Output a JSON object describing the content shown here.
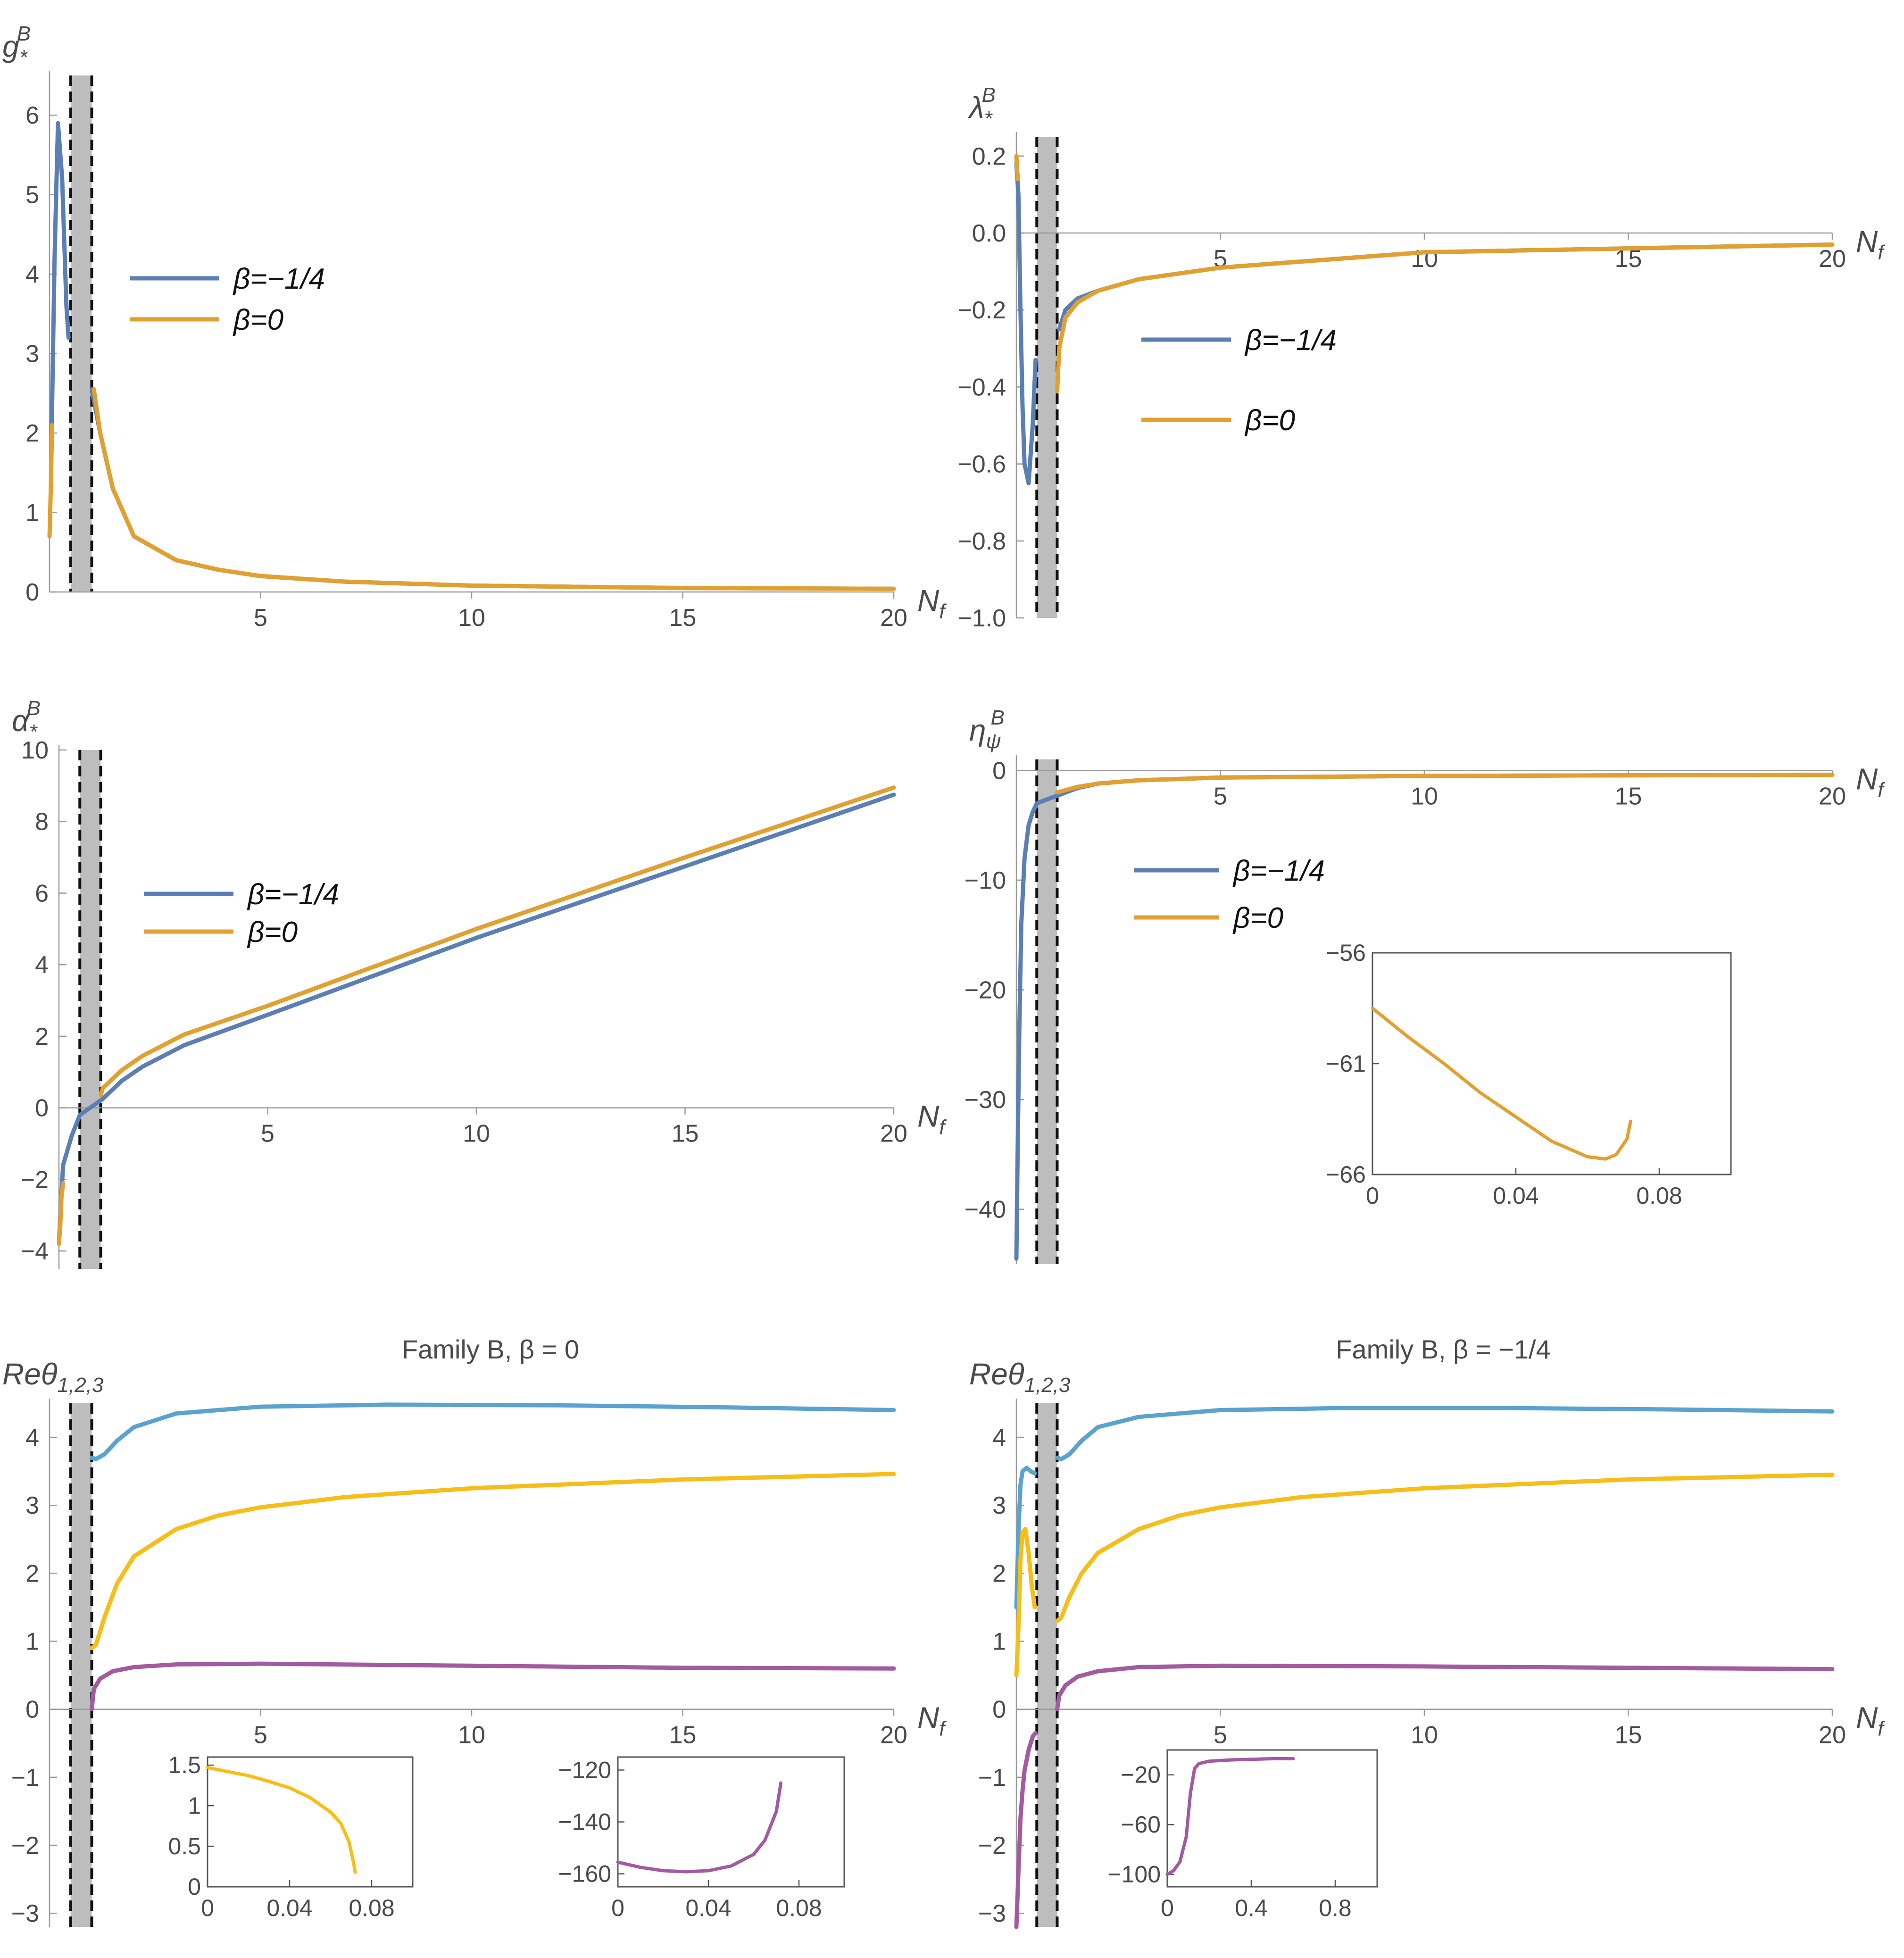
{
  "colors": {
    "blue": "#5b7fb5",
    "orange": "#e2a030",
    "light_blue": "#5aa3cf",
    "yellow": "#f7bd18",
    "purple": "#a25ba0",
    "band": "#bdbdbd",
    "axis": "#9a9a9a"
  },
  "chart_data": [
    {
      "id": "g",
      "type": "line",
      "title": "",
      "ylabel_main": "g",
      "ylabel_sub": "*",
      "ylabel_sup": "B",
      "xlabel_main": "N",
      "xlabel_sub": "f",
      "xlim": [
        0,
        20
      ],
      "ylim": [
        0,
        6.5
      ],
      "xticks": [
        5,
        10,
        15,
        20
      ],
      "xtick_labels": [
        "5",
        "10",
        "15",
        "20"
      ],
      "yticks": [
        0,
        1,
        2,
        3,
        4,
        5,
        6
      ],
      "ytick_labels": [
        "0",
        "1",
        "2",
        "3",
        "4",
        "5",
        "6"
      ],
      "band": [
        0.5,
        1.0
      ],
      "legend": [
        "β=−1/4",
        "β=0"
      ],
      "series": [
        {
          "name": "β=−1/4",
          "color": "blue",
          "x": [
            0.05,
            0.12,
            0.2,
            0.3,
            0.4,
            0.45,
            1.0,
            1.2,
            1.5,
            2,
            3,
            4,
            5,
            7,
            10,
            15,
            20
          ],
          "y": [
            2.0,
            4.2,
            5.9,
            5.2,
            3.6,
            3.2,
            2.55,
            2.0,
            1.3,
            0.7,
            0.4,
            0.28,
            0.2,
            0.13,
            0.08,
            0.05,
            0.04
          ]
        },
        {
          "name": "β=0",
          "color": "orange",
          "x": [
            0.0,
            0.03,
            0.06,
            1.05,
            1.2,
            1.5,
            2,
            3,
            4,
            5,
            7,
            10,
            15,
            20
          ],
          "y": [
            0.7,
            1.3,
            2.1,
            2.55,
            2.0,
            1.3,
            0.7,
            0.4,
            0.28,
            0.2,
            0.13,
            0.08,
            0.05,
            0.04
          ]
        }
      ]
    },
    {
      "id": "lambda",
      "type": "line",
      "title": "",
      "ylabel_main": "λ",
      "ylabel_sub": "*",
      "ylabel_sup": "B",
      "xlabel_main": "N",
      "xlabel_sub": "f",
      "xlim": [
        0,
        20
      ],
      "ylim": [
        -1.0,
        0.25
      ],
      "xticks": [
        5,
        10,
        15,
        20
      ],
      "xtick_labels": [
        "5",
        "10",
        "15",
        "20"
      ],
      "yticks": [
        0.2,
        0.0,
        -0.2,
        -0.4,
        -0.6,
        -0.8,
        -1.0
      ],
      "ytick_labels": [
        "0.2",
        "0.0",
        "−0.2",
        "−0.4",
        "−0.6",
        "−0.8",
        "−1.0"
      ],
      "band": [
        0.5,
        1.0
      ],
      "legend": [
        "β=−1/4",
        "β=0"
      ],
      "series": [
        {
          "name": "β=−1/4",
          "color": "blue",
          "x": [
            0.0,
            0.05,
            0.1,
            0.15,
            0.2,
            0.3,
            0.4,
            0.47,
            1.05,
            1.2,
            1.5,
            2,
            3,
            5,
            10,
            15,
            20
          ],
          "y": [
            0.18,
            0.1,
            -0.2,
            -0.45,
            -0.6,
            -0.65,
            -0.5,
            -0.33,
            -0.25,
            -0.2,
            -0.17,
            -0.15,
            -0.12,
            -0.09,
            -0.05,
            -0.04,
            -0.03
          ]
        },
        {
          "name": "β=0",
          "color": "orange",
          "x": [
            0.0,
            0.02,
            0.04,
            1.0,
            1.05,
            1.2,
            1.5,
            2,
            3,
            5,
            10,
            15,
            20
          ],
          "y": [
            0.2,
            0.16,
            0.14,
            -0.41,
            -0.3,
            -0.22,
            -0.18,
            -0.15,
            -0.12,
            -0.09,
            -0.05,
            -0.04,
            -0.03
          ]
        }
      ]
    },
    {
      "id": "alpha",
      "type": "line",
      "title": "",
      "ylabel_main": "α",
      "ylabel_sub": "*",
      "ylabel_sup": "B",
      "xlabel_main": "N",
      "xlabel_sub": "f",
      "xlim": [
        0,
        20
      ],
      "ylim": [
        -4.5,
        10
      ],
      "xticks": [
        5,
        10,
        15,
        20
      ],
      "xtick_labels": [
        "5",
        "10",
        "15",
        "20"
      ],
      "yticks": [
        10,
        8,
        6,
        4,
        2,
        0,
        -2,
        -4
      ],
      "ytick_labels": [
        "10",
        "8",
        "6",
        "4",
        "2",
        "0",
        "−2",
        "−4"
      ],
      "band": [
        0.5,
        1.0
      ],
      "legend": [
        "β=−1/4",
        "β=0"
      ],
      "series": [
        {
          "name": "β=−1/4",
          "color": "blue",
          "x": [
            0.0,
            0.05,
            0.1,
            0.2,
            0.3,
            0.4,
            0.5,
            1.05,
            1.5,
            2,
            3,
            5,
            10,
            15,
            20
          ],
          "y": [
            -3.8,
            -2.6,
            -1.6,
            -1.2,
            -0.8,
            -0.5,
            -0.2,
            0.25,
            0.75,
            1.15,
            1.75,
            2.6,
            4.75,
            6.75,
            8.75
          ]
        },
        {
          "name": "β=0",
          "color": "orange",
          "x": [
            0.0,
            0.03,
            0.06,
            0.1,
            1.0,
            1.05,
            1.5,
            2,
            3,
            5,
            10,
            15,
            20
          ],
          "y": [
            -3.8,
            -3.3,
            -2.5,
            -2.1,
            0.35,
            0.55,
            1.05,
            1.45,
            2.05,
            2.85,
            5.0,
            7.0,
            8.95
          ]
        }
      ]
    },
    {
      "id": "eta",
      "type": "line",
      "title": "",
      "ylabel_main": "η",
      "ylabel_sub": "ψ",
      "ylabel_sup": "B",
      "xlabel_main": "N",
      "xlabel_sub": "f",
      "xlim": [
        0,
        20
      ],
      "ylim": [
        -45,
        1
      ],
      "xticks": [
        5,
        10,
        15,
        20
      ],
      "xtick_labels": [
        "5",
        "10",
        "15",
        "20"
      ],
      "yticks": [
        0,
        -10,
        -20,
        -30,
        -40
      ],
      "ytick_labels": [
        "0",
        "−10",
        "−20",
        "−30",
        "−40"
      ],
      "band": [
        0.5,
        1.0
      ],
      "legend": [
        "β=−1/4",
        "β=0"
      ],
      "series": [
        {
          "name": "β=−1/4",
          "color": "blue",
          "x": [
            0.0,
            0.03,
            0.07,
            0.12,
            0.2,
            0.3,
            0.4,
            0.5,
            1.0,
            1.5,
            2,
            3,
            5,
            10,
            20
          ],
          "y": [
            -44.5,
            -35,
            -24,
            -14,
            -8,
            -5,
            -3.8,
            -3.0,
            -2.3,
            -1.6,
            -1.2,
            -0.9,
            -0.65,
            -0.5,
            -0.4
          ]
        },
        {
          "name": "β=0",
          "color": "orange",
          "x": [
            1.0,
            1.1,
            1.5,
            2,
            3,
            5,
            10,
            20
          ],
          "y": [
            -2.0,
            -1.9,
            -1.5,
            -1.2,
            -0.9,
            -0.65,
            -0.5,
            -0.4
          ]
        }
      ],
      "inset": {
        "xlim": [
          0,
          0.1
        ],
        "ylim": [
          -66,
          -56
        ],
        "xticks": [
          0,
          0.04,
          0.08
        ],
        "xtick_labels": [
          "0",
          "0.04",
          "0.08"
        ],
        "yticks": [
          -56,
          -61,
          -66
        ],
        "ytick_labels": [
          "−56",
          "−61",
          "−66"
        ],
        "series": [
          {
            "name": "β=0",
            "color": "orange",
            "x": [
              0.0,
              0.01,
              0.02,
              0.03,
              0.04,
              0.05,
              0.06,
              0.065,
              0.068,
              0.071,
              0.072
            ],
            "y": [
              -58.5,
              -59.8,
              -61.0,
              -62.3,
              -63.4,
              -64.5,
              -65.2,
              -65.3,
              -65.1,
              -64.4,
              -63.6
            ]
          }
        ]
      }
    },
    {
      "id": "theta_b0",
      "type": "line",
      "title": "Family B, β = 0",
      "ylabel_main": "Reθ",
      "ylabel_sub": "1,2,3",
      "ylabel_sup": "",
      "xlabel_main": "N",
      "xlabel_sub": "f",
      "xlim": [
        0,
        20
      ],
      "ylim": [
        -3.2,
        4.5
      ],
      "xticks": [
        5,
        10,
        15,
        20
      ],
      "xtick_labels": [
        "5",
        "10",
        "15",
        "20"
      ],
      "yticks": [
        4,
        3,
        2,
        1,
        0,
        -1,
        -2,
        -3
      ],
      "ytick_labels": [
        "4",
        "3",
        "2",
        "1",
        "0",
        "−1",
        "−2",
        "−3"
      ],
      "band": [
        0.5,
        1.0
      ],
      "series": [
        {
          "name": "Reθ1",
          "color": "light_blue",
          "x": [
            1.0,
            1.1,
            1.3,
            1.6,
            2,
            3,
            5,
            8,
            12,
            16,
            20
          ],
          "y": [
            3.7,
            3.68,
            3.75,
            3.95,
            4.15,
            4.35,
            4.45,
            4.48,
            4.47,
            4.44,
            4.4
          ]
        },
        {
          "name": "Reθ2",
          "color": "yellow",
          "x": [
            1.0,
            1.1,
            1.3,
            1.6,
            2,
            3,
            4,
            5,
            7,
            10,
            15,
            20
          ],
          "y": [
            0.9,
            0.95,
            1.35,
            1.85,
            2.25,
            2.65,
            2.85,
            2.97,
            3.12,
            3.25,
            3.38,
            3.46
          ]
        },
        {
          "name": "Reθ3",
          "color": "purple",
          "x": [
            1.0,
            1.05,
            1.2,
            1.5,
            2,
            3,
            5,
            10,
            15,
            20
          ],
          "y": [
            0.0,
            0.3,
            0.45,
            0.56,
            0.62,
            0.66,
            0.67,
            0.64,
            0.61,
            0.6
          ]
        }
      ],
      "insets": [
        {
          "xlim": [
            0,
            0.1
          ],
          "ylim": [
            0,
            1.6
          ],
          "xticks": [
            0,
            0.04,
            0.08
          ],
          "xtick_labels": [
            "0",
            "0.04",
            "0.08"
          ],
          "yticks": [
            1.5,
            1,
            0.5,
            0
          ],
          "ytick_labels": [
            "1.5",
            "1",
            "0.5",
            "0"
          ],
          "series": [
            {
              "name": "Reθ2",
              "color": "yellow",
              "x": [
                0.0,
                0.01,
                0.02,
                0.03,
                0.04,
                0.05,
                0.06,
                0.065,
                0.069,
                0.071,
                0.072
              ],
              "y": [
                1.47,
                1.42,
                1.37,
                1.3,
                1.22,
                1.1,
                0.92,
                0.78,
                0.55,
                0.32,
                0.18
              ]
            }
          ]
        },
        {
          "xlim": [
            0,
            0.1
          ],
          "ylim": [
            -165,
            -115
          ],
          "xticks": [
            0,
            0.04,
            0.08
          ],
          "xtick_labels": [
            "0",
            "0.04",
            "0.08"
          ],
          "yticks": [
            -120,
            -140,
            -160
          ],
          "ytick_labels": [
            "−120",
            "−140",
            "−160"
          ],
          "series": [
            {
              "name": "Reθ3",
              "color": "purple",
              "x": [
                0.0,
                0.01,
                0.02,
                0.03,
                0.04,
                0.05,
                0.06,
                0.065,
                0.07,
                0.072
              ],
              "y": [
                -155.5,
                -157.5,
                -158.8,
                -159.2,
                -158.8,
                -157.0,
                -152.5,
                -147.0,
                -136.0,
                -125.0
              ]
            }
          ]
        }
      ]
    },
    {
      "id": "theta_bm",
      "type": "line",
      "title": "Family B, β = −1/4",
      "ylabel_main": "Reθ",
      "ylabel_sub": "1,2,3",
      "ylabel_sup": "",
      "xlabel_main": "N",
      "xlabel_sub": "f",
      "xlim": [
        0,
        20
      ],
      "ylim": [
        -3.2,
        4.5
      ],
      "xticks": [
        5,
        10,
        15,
        20
      ],
      "xtick_labels": [
        "5",
        "10",
        "15",
        "20"
      ],
      "yticks": [
        4,
        3,
        2,
        1,
        0,
        -1,
        -2,
        -3
      ],
      "ytick_labels": [
        "4",
        "3",
        "2",
        "1",
        "0",
        "−1",
        "−2",
        "−3"
      ],
      "band": [
        0.5,
        1.0
      ],
      "series": [
        {
          "name": "Reθ1",
          "color": "light_blue",
          "x": [
            0.0,
            0.05,
            0.1,
            0.15,
            0.25,
            0.35,
            0.45,
            1.0,
            1.1,
            1.3,
            1.6,
            2,
            3,
            5,
            8,
            12,
            16,
            20
          ],
          "y": [
            1.5,
            2.6,
            3.3,
            3.5,
            3.55,
            3.5,
            3.47,
            3.7,
            3.68,
            3.75,
            3.95,
            4.15,
            4.3,
            4.4,
            4.43,
            4.43,
            4.41,
            4.38
          ]
        },
        {
          "name": "Reθ2",
          "color": "yellow",
          "x": [
            0.0,
            0.05,
            0.1,
            0.15,
            0.22,
            0.3,
            0.38,
            0.45,
            1.0,
            1.1,
            1.3,
            1.6,
            2,
            3,
            4,
            5,
            7,
            10,
            15,
            20
          ],
          "y": [
            0.5,
            1.2,
            2.2,
            2.6,
            2.65,
            2.3,
            1.8,
            1.5,
            1.3,
            1.35,
            1.65,
            2.0,
            2.3,
            2.65,
            2.85,
            2.97,
            3.12,
            3.25,
            3.38,
            3.45
          ]
        },
        {
          "name": "Reθ3",
          "color": "purple",
          "x": [
            0.0,
            0.05,
            0.1,
            0.15,
            0.2,
            0.3,
            0.4,
            0.47,
            1.0,
            1.05,
            1.2,
            1.5,
            2,
            3,
            5,
            10,
            15,
            20
          ],
          "y": [
            -3.2,
            -2.4,
            -1.6,
            -1.2,
            -0.9,
            -0.6,
            -0.4,
            -0.35,
            0.0,
            0.2,
            0.35,
            0.48,
            0.56,
            0.62,
            0.64,
            0.63,
            0.61,
            0.59
          ]
        }
      ],
      "inset": {
        "xlim": [
          0,
          1.0
        ],
        "ylim": [
          -110,
          0
        ],
        "xticks": [
          0,
          0.4,
          0.8
        ],
        "xtick_labels": [
          "0",
          "0.4",
          "0.8"
        ],
        "yticks": [
          -20,
          -60,
          -100
        ],
        "ytick_labels": [
          "−20",
          "−60",
          "−100"
        ],
        "series": [
          {
            "name": "Reθ3",
            "color": "purple",
            "x": [
              0.0,
              0.03,
              0.06,
              0.09,
              0.11,
              0.13,
              0.15,
              0.2,
              0.3,
              0.4,
              0.5,
              0.6
            ],
            "y": [
              -100,
              -97,
              -90,
              -70,
              -35,
              -15,
              -11,
              -9,
              -8,
              -7.5,
              -7,
              -7
            ]
          }
        ]
      }
    }
  ]
}
